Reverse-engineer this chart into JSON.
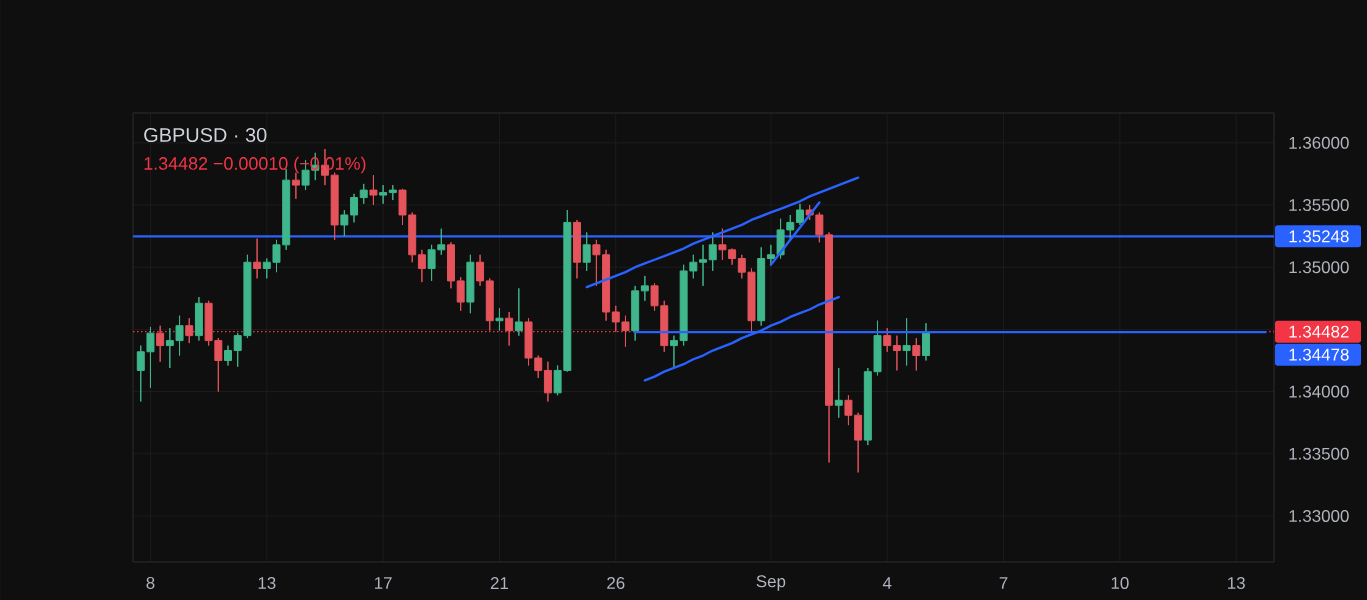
{
  "chart_data": {
    "type": "candlestick",
    "title": "GBPUSD · 30",
    "subtitle": "1.34482 −0.00010 (−0.01%)",
    "categories": [
      null,
      "8",
      null,
      null,
      null,
      null,
      null,
      null,
      null,
      null,
      null,
      null,
      null,
      "13",
      null,
      null,
      null,
      null,
      null,
      null,
      null,
      null,
      null,
      null,
      null,
      "17",
      null,
      null,
      null,
      null,
      null,
      null,
      null,
      null,
      null,
      null,
      null,
      "21",
      null,
      null,
      null,
      null,
      null,
      null,
      null,
      null,
      null,
      null,
      null,
      "26",
      null,
      null,
      null,
      null,
      null,
      null,
      null,
      null,
      null,
      null,
      null,
      null,
      null,
      null,
      null,
      "Sep",
      null,
      null,
      null,
      null,
      null,
      null,
      null,
      null,
      null,
      null,
      null,
      "4",
      null,
      null,
      null,
      null,
      null,
      null,
      null,
      null,
      null,
      null,
      null,
      "7",
      null,
      null,
      null,
      null,
      null,
      null,
      null,
      null,
      null,
      null,
      null,
      "10",
      null,
      null,
      null,
      null,
      null,
      null,
      null,
      null,
      null,
      null,
      null,
      "13",
      null,
      null,
      null
    ],
    "ohlc": [
      [
        1.3417,
        1.3437,
        1.3392,
        1.3432
      ],
      [
        1.3432,
        1.3452,
        1.3403,
        1.3447
      ],
      [
        1.3447,
        1.3453,
        1.3424,
        1.3437
      ],
      [
        1.3437,
        1.3451,
        1.3419,
        1.3441
      ],
      [
        1.3441,
        1.3461,
        1.3429,
        1.3453
      ],
      [
        1.3453,
        1.3459,
        1.3439,
        1.3445
      ],
      [
        1.3445,
        1.3476,
        1.3441,
        1.3471
      ],
      [
        1.3471,
        1.3473,
        1.3437,
        1.3441
      ],
      [
        1.3441,
        1.3443,
        1.34,
        1.3425
      ],
      [
        1.3425,
        1.3437,
        1.3421,
        1.3433
      ],
      [
        1.3433,
        1.3447,
        1.342,
        1.3445
      ],
      [
        1.3445,
        1.351,
        1.3443,
        1.3504
      ],
      [
        1.3504,
        1.3523,
        1.3491,
        1.3499
      ],
      [
        1.3499,
        1.3507,
        1.3491,
        1.3504
      ],
      [
        1.3504,
        1.3522,
        1.3496,
        1.3518
      ],
      [
        1.3518,
        1.3579,
        1.3514,
        1.357
      ],
      [
        1.357,
        1.3576,
        1.3555,
        1.3566
      ],
      [
        1.3566,
        1.3586,
        1.3562,
        1.3578
      ],
      [
        1.3578,
        1.3592,
        1.357,
        1.3582
      ],
      [
        1.3582,
        1.3595,
        1.3566,
        1.3574
      ],
      [
        1.3574,
        1.3576,
        1.3522,
        1.3534
      ],
      [
        1.3534,
        1.3546,
        1.3525,
        1.3542
      ],
      [
        1.3542,
        1.3559,
        1.3536,
        1.3556
      ],
      [
        1.3556,
        1.3567,
        1.3551,
        1.3562
      ],
      [
        1.3562,
        1.3574,
        1.355,
        1.3558
      ],
      [
        1.3558,
        1.3566,
        1.3551,
        1.356
      ],
      [
        1.356,
        1.3566,
        1.3554,
        1.3562
      ],
      [
        1.3562,
        1.3563,
        1.3534,
        1.3542
      ],
      [
        1.3542,
        1.3544,
        1.3504,
        1.351
      ],
      [
        1.351,
        1.3514,
        1.3488,
        1.3499
      ],
      [
        1.3499,
        1.3518,
        1.3489,
        1.3514
      ],
      [
        1.3514,
        1.3531,
        1.351,
        1.3518
      ],
      [
        1.3518,
        1.352,
        1.3483,
        1.3489
      ],
      [
        1.3489,
        1.3492,
        1.3465,
        1.3472
      ],
      [
        1.3472,
        1.351,
        1.3463,
        1.3504
      ],
      [
        1.3504,
        1.351,
        1.3485,
        1.3489
      ],
      [
        1.3489,
        1.3491,
        1.3449,
        1.3457
      ],
      [
        1.3457,
        1.3467,
        1.3449,
        1.3459
      ],
      [
        1.3459,
        1.3464,
        1.3437,
        1.3449
      ],
      [
        1.3449,
        1.3483,
        1.3445,
        1.3456
      ],
      [
        1.3456,
        1.3459,
        1.3421,
        1.3427
      ],
      [
        1.3427,
        1.3429,
        1.3411,
        1.3417
      ],
      [
        1.3417,
        1.3424,
        1.3392,
        1.3399
      ],
      [
        1.3399,
        1.3421,
        1.3397,
        1.3417
      ],
      [
        1.3417,
        1.3546,
        1.3416,
        1.3536
      ],
      [
        1.3536,
        1.3538,
        1.3491,
        1.3504
      ],
      [
        1.3504,
        1.3528,
        1.3497,
        1.3518
      ],
      [
        1.3518,
        1.3522,
        1.3485,
        1.351
      ],
      [
        1.351,
        1.3514,
        1.3457,
        1.3464
      ],
      [
        1.3464,
        1.3469,
        1.3448,
        1.3456
      ],
      [
        1.3456,
        1.3461,
        1.3436,
        1.3449
      ],
      [
        1.3449,
        1.3485,
        1.3441,
        1.3481
      ],
      [
        1.3481,
        1.3493,
        1.3473,
        1.3485
      ],
      [
        1.3485,
        1.3487,
        1.3465,
        1.3469
      ],
      [
        1.3469,
        1.3473,
        1.3432,
        1.3437
      ],
      [
        1.3437,
        1.3445,
        1.3419,
        1.3441
      ],
      [
        1.3441,
        1.3502,
        1.3437,
        1.3497
      ],
      [
        1.3497,
        1.351,
        1.3491,
        1.3504
      ],
      [
        1.3504,
        1.3518,
        1.3485,
        1.3506
      ],
      [
        1.3506,
        1.3528,
        1.3497,
        1.3518
      ],
      [
        1.3518,
        1.3531,
        1.3506,
        1.3514
      ],
      [
        1.3514,
        1.3515,
        1.3502,
        1.3507
      ],
      [
        1.3507,
        1.351,
        1.3491,
        1.3496
      ],
      [
        1.3496,
        1.3499,
        1.3448,
        1.3457
      ],
      [
        1.3457,
        1.3516,
        1.3453,
        1.3507
      ],
      [
        1.3507,
        1.3518,
        1.3502,
        1.351
      ],
      [
        1.351,
        1.3539,
        1.3507,
        1.353
      ],
      [
        1.353,
        1.3542,
        1.3522,
        1.3536
      ],
      [
        1.3536,
        1.3551,
        1.3534,
        1.3546
      ],
      [
        1.3546,
        1.355,
        1.3538,
        1.3542
      ],
      [
        1.3542,
        1.3544,
        1.352,
        1.3526
      ],
      [
        1.3526,
        1.3528,
        1.3343,
        1.3389
      ],
      [
        1.3389,
        1.3419,
        1.3379,
        1.3393
      ],
      [
        1.3393,
        1.3397,
        1.3373,
        1.3381
      ],
      [
        1.3381,
        1.3383,
        1.3335,
        1.3361
      ],
      [
        1.3361,
        1.3419,
        1.3357,
        1.3416
      ],
      [
        1.3416,
        1.3457,
        1.3413,
        1.3445
      ],
      [
        1.3445,
        1.3451,
        1.3432,
        1.3437
      ],
      [
        1.3437,
        1.3445,
        1.3417,
        1.3433
      ],
      [
        1.3433,
        1.3459,
        1.3421,
        1.3437
      ],
      [
        1.3437,
        1.3443,
        1.3417,
        1.3429
      ],
      [
        1.3429,
        1.3455,
        1.3425,
        1.34482
      ],
      null,
      null,
      null,
      null,
      null,
      null,
      null,
      null,
      null,
      null,
      null,
      null,
      null,
      null,
      null,
      null,
      null,
      null,
      null,
      null,
      null,
      null,
      null,
      null,
      null,
      null,
      null,
      null,
      null,
      null,
      null,
      null,
      null,
      null,
      null
    ],
    "colors": [
      "#3fb68b",
      "#3fb68b",
      "#e5535b",
      "#3fb68b",
      "#3fb68b",
      "#e5535b",
      "#3fb68b",
      "#e5535b",
      "#e5535b",
      "#3fb68b",
      "#3fb68b",
      "#3fb68b",
      "#e5535b",
      "#3fb68b",
      "#3fb68b",
      "#3fb68b",
      "#e5535b",
      "#3fb68b",
      "#3fb68b",
      "#e5535b",
      "#e5535b",
      "#3fb68b",
      "#3fb68b",
      "#3fb68b",
      "#e5535b",
      "#3fb68b",
      "#3fb68b",
      "#e5535b",
      "#e5535b",
      "#e5535b",
      "#3fb68b",
      "#3fb68b",
      "#e5535b",
      "#e5535b",
      "#3fb68b",
      "#e5535b",
      "#e5535b",
      "#3fb68b",
      "#e5535b",
      "#3fb68b",
      "#e5535b",
      "#e5535b",
      "#e5535b",
      "#3fb68b",
      "#3fb68b",
      "#e5535b",
      "#3fb68b",
      "#e5535b",
      "#e5535b",
      "#e5535b",
      "#e5535b",
      "#3fb68b",
      "#3fb68b",
      "#e5535b",
      "#e5535b",
      "#3fb68b",
      "#3fb68b",
      "#3fb68b",
      "#3fb68b",
      "#3fb68b",
      "#e5535b",
      "#e5535b",
      "#e5535b",
      "#e5535b",
      "#3fb68b",
      "#3fb68b",
      "#3fb68b",
      "#3fb68b",
      "#3fb68b",
      "#e5535b",
      "#e5535b",
      "#e5535b",
      "#3fb68b",
      "#e5535b",
      "#e5535b",
      "#3fb68b",
      "#3fb68b",
      "#e5535b",
      "#e5535b",
      "#3fb68b",
      "#e5535b",
      "#3fb68b",
      null,
      null,
      null,
      null,
      null,
      null,
      null,
      null,
      null,
      null,
      null,
      null,
      null,
      null,
      null,
      null,
      null,
      null,
      null,
      null,
      null,
      null,
      null,
      null,
      null,
      null,
      null,
      null,
      null,
      null,
      null,
      null,
      null,
      null,
      null
    ],
    "series": [
      {
        "type": "line",
        "color": "#2962ff",
        "values": [
          null,
          null,
          null,
          null,
          null,
          null,
          null,
          null,
          null,
          null,
          null,
          null,
          null,
          null,
          null,
          null,
          null,
          null,
          null,
          null,
          null,
          null,
          null,
          null,
          null,
          null,
          null,
          null,
          null,
          null,
          null,
          null,
          null,
          null,
          null,
          null,
          null,
          null,
          null,
          null,
          null,
          null,
          null,
          null,
          null,
          null,
          1.3484,
          1.3487,
          1.349,
          1.3493,
          1.3496,
          1.35,
          1.3503,
          1.3506,
          1.3509,
          1.3512,
          1.3515,
          1.3519,
          1.3522,
          1.3525,
          1.3528,
          1.3531,
          1.3534,
          1.3538,
          1.3541,
          1.3544,
          1.3547,
          1.355,
          1.3553,
          1.3557,
          1.356,
          1.3563,
          1.3566,
          1.3569,
          1.3572,
          null,
          null,
          null,
          null,
          null,
          null,
          null,
          null,
          null,
          null,
          null,
          null,
          null,
          null,
          null,
          null,
          null,
          null,
          null,
          null,
          null,
          null,
          null,
          null,
          null,
          null,
          null,
          null,
          null,
          null,
          null,
          null,
          null,
          null,
          null,
          null,
          null,
          null,
          null,
          null,
          null,
          null
        ]
      },
      {
        "type": "line",
        "color": "#2962ff",
        "values": [
          null,
          null,
          null,
          null,
          null,
          null,
          null,
          null,
          null,
          null,
          null,
          null,
          null,
          null,
          null,
          null,
          null,
          null,
          null,
          null,
          null,
          null,
          null,
          null,
          null,
          null,
          null,
          null,
          null,
          null,
          null,
          null,
          null,
          null,
          null,
          null,
          null,
          null,
          null,
          null,
          null,
          null,
          null,
          null,
          null,
          null,
          null,
          null,
          null,
          null,
          null,
          null,
          1.3409,
          1.3412,
          1.3416,
          1.3419,
          1.3422,
          1.3426,
          1.3429,
          1.3433,
          1.3436,
          1.3439,
          1.3443,
          1.3446,
          1.3449,
          1.3453,
          1.3456,
          1.346,
          1.3463,
          1.3466,
          1.347,
          1.3473,
          1.3476,
          null,
          null,
          null,
          null,
          null,
          null,
          null,
          null,
          null,
          null,
          null,
          null,
          null,
          null,
          null,
          null,
          null,
          null,
          null,
          null,
          null,
          null,
          null,
          null,
          null,
          null,
          null,
          null,
          null,
          null,
          null,
          null,
          null,
          null,
          null,
          null,
          null,
          null,
          null,
          null,
          null,
          null,
          null,
          null
        ]
      },
      {
        "type": "line",
        "color": "#2962ff",
        "values": [
          null,
          null,
          null,
          null,
          null,
          null,
          null,
          null,
          null,
          null,
          null,
          null,
          null,
          null,
          null,
          null,
          null,
          null,
          null,
          null,
          null,
          null,
          null,
          null,
          null,
          null,
          null,
          null,
          null,
          null,
          null,
          null,
          null,
          null,
          null,
          null,
          null,
          null,
          null,
          null,
          null,
          null,
          null,
          null,
          null,
          null,
          null,
          null,
          null,
          null,
          null,
          null,
          null,
          null,
          null,
          null,
          null,
          null,
          null,
          null,
          null,
          null,
          null,
          null,
          null,
          1.3502,
          1.3512,
          1.3522,
          1.3532,
          1.3542,
          1.3552,
          null,
          null,
          null,
          null,
          null,
          null,
          null,
          null,
          null,
          null,
          null,
          null,
          null,
          null,
          null,
          null,
          null,
          null,
          null,
          null,
          null,
          null,
          null,
          null,
          null,
          null,
          null,
          null,
          null,
          null,
          null,
          null,
          null,
          null,
          null,
          null,
          null,
          null,
          null,
          null,
          null,
          null,
          null,
          null,
          null,
          null
        ]
      },
      {
        "type": "line",
        "name": "1.34478",
        "color": "#2962ff",
        "values": [
          null,
          null,
          null,
          null,
          null,
          null,
          null,
          null,
          null,
          null,
          null,
          null,
          null,
          null,
          null,
          null,
          null,
          null,
          null,
          null,
          null,
          null,
          null,
          null,
          null,
          null,
          null,
          null,
          null,
          null,
          null,
          null,
          null,
          null,
          null,
          null,
          null,
          null,
          null,
          null,
          null,
          null,
          null,
          null,
          null,
          null,
          null,
          null,
          null,
          null,
          null,
          1.34478,
          1.34478,
          1.34478,
          1.34478,
          1.34478,
          1.34478,
          1.34478,
          1.34478,
          1.34478,
          1.34478,
          1.34478,
          1.34478,
          1.34478,
          1.34478,
          1.34478,
          1.34478,
          1.34478,
          1.34478,
          1.34478,
          1.34478,
          1.34478,
          1.34478,
          1.34478,
          1.34478,
          1.34478,
          1.34478,
          1.34478,
          1.34478,
          1.34478,
          1.34478,
          1.34478,
          1.34478,
          1.34478,
          1.34478,
          1.34478,
          1.34478,
          1.34478,
          1.34478,
          1.34478,
          1.34478,
          1.34478,
          1.34478,
          1.34478,
          1.34478,
          1.34478,
          1.34478,
          1.34478,
          1.34478,
          1.34478,
          1.34478,
          1.34478,
          1.34478,
          1.34478,
          1.34478,
          1.34478,
          1.34478,
          1.34478,
          1.34478,
          1.34478,
          1.34478,
          1.34478,
          1.34478,
          1.34478,
          1.34478,
          1.34478,
          1.34478
        ]
      }
    ],
    "ref_lines": [
      {
        "axis": "y",
        "value": 1.35248,
        "label": "1.35248",
        "color": "#2962ff",
        "line_style": "solid"
      },
      {
        "axis": "y",
        "value": 1.34482,
        "label": "1.34482",
        "color": "#f23645",
        "line_style": "dotted"
      }
    ],
    "ylim": [
      1.3263,
      1.3624
    ],
    "yticks": [
      {
        "value": 1.33,
        "label": "1.33000"
      },
      {
        "value": 1.335,
        "label": "1.33500"
      },
      {
        "value": 1.34,
        "label": "1.34000"
      },
      {
        "value": 1.345,
        "label": null
      },
      {
        "value": 1.35,
        "label": "1.35000"
      },
      {
        "value": 1.355,
        "label": "1.35500"
      },
      {
        "value": 1.36,
        "label": "1.36000"
      }
    ],
    "grid": true
  }
}
